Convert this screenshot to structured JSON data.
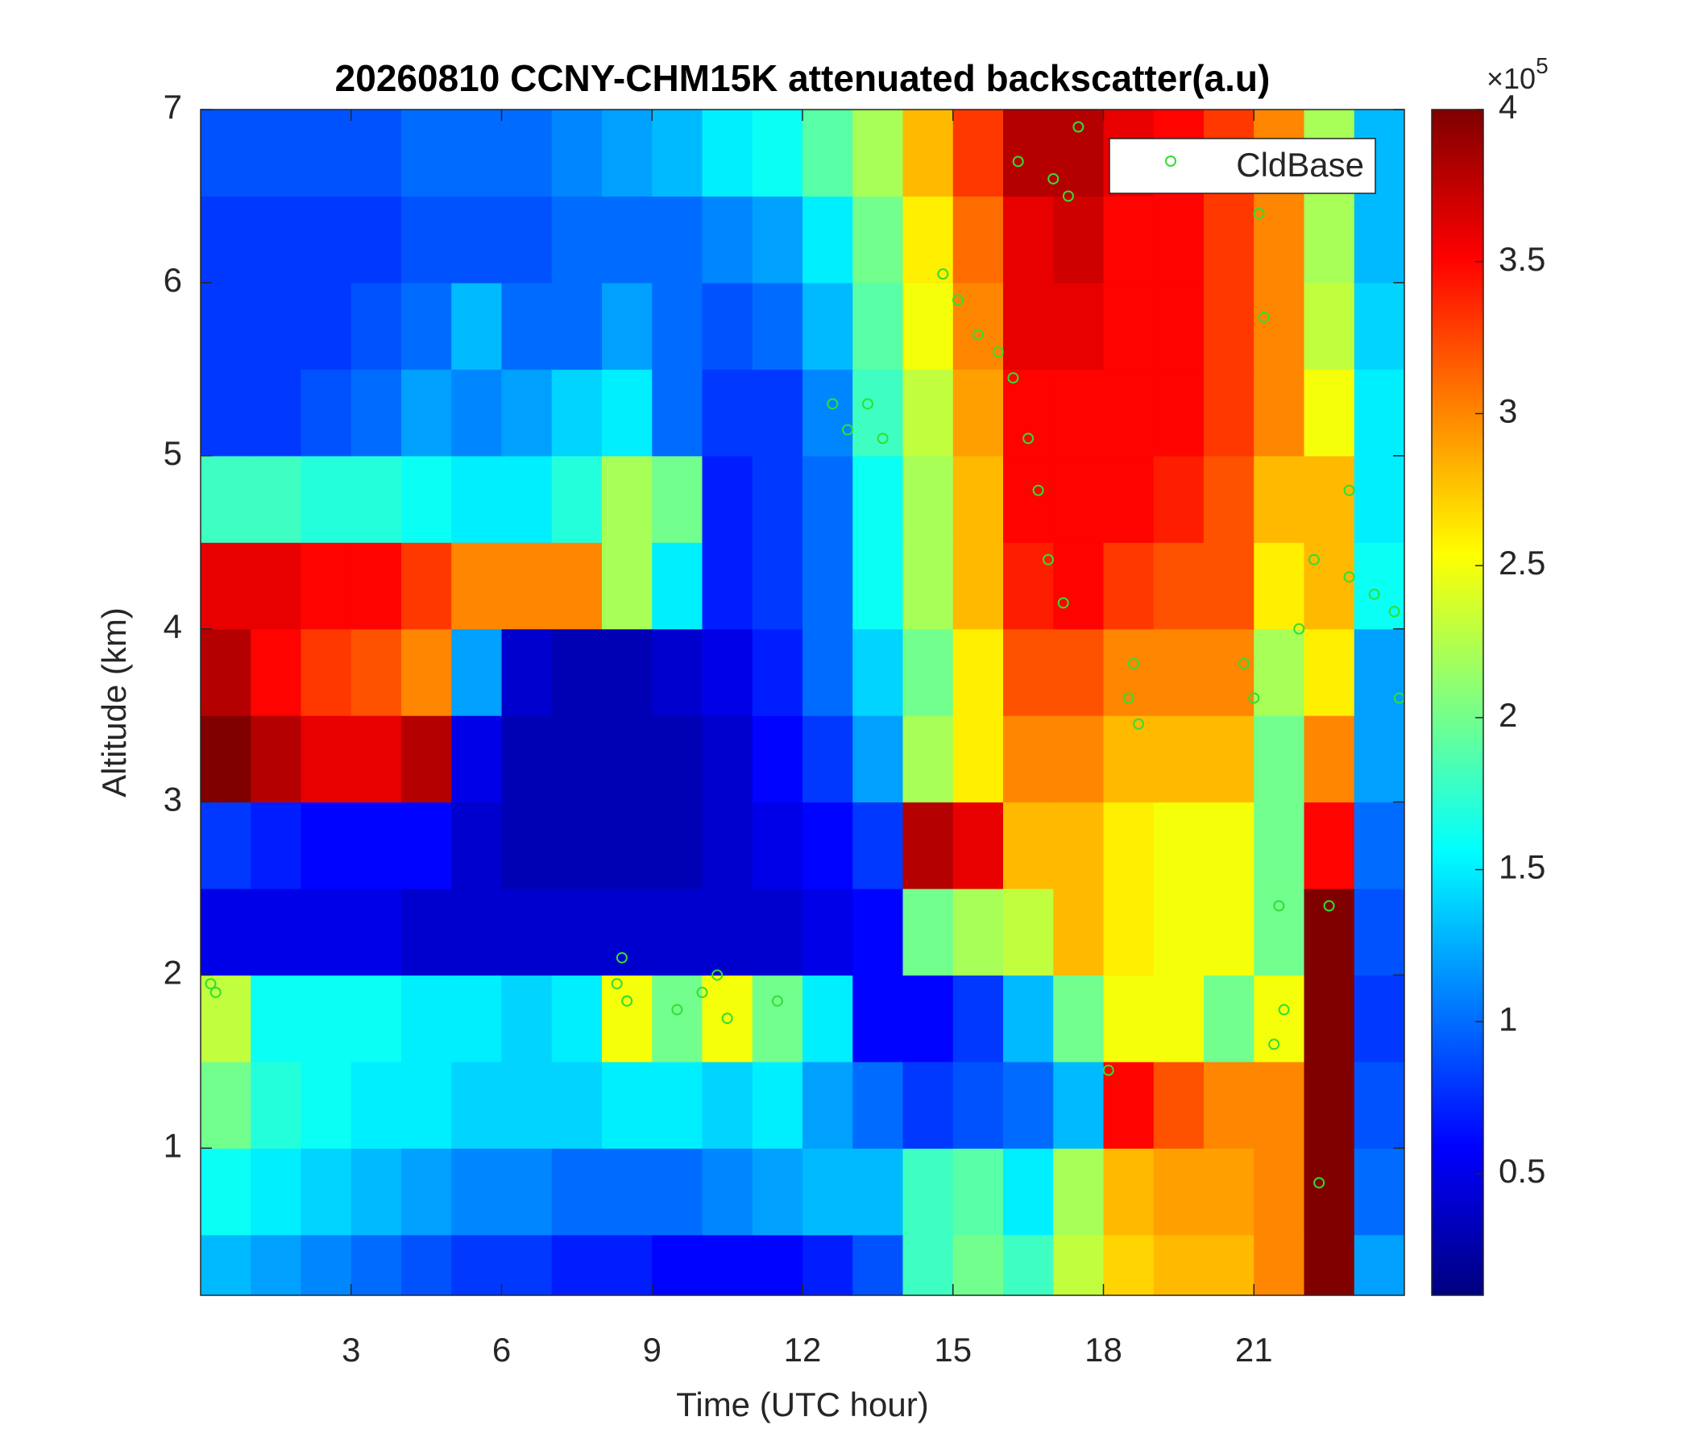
{
  "chart_data": {
    "type": "heatmap",
    "title": "20260810 CCNY-CHM15K attenuated backscatter(a.u)",
    "x_label": "Time (UTC hour)",
    "y_label": "Altitude (km)",
    "xlim": [
      0,
      24
    ],
    "ylim": [
      0.15,
      7
    ],
    "xticks": [
      3,
      6,
      9,
      12,
      15,
      18,
      21
    ],
    "yticks": [
      1,
      2,
      3,
      4,
      5,
      6,
      7
    ],
    "x_bins": [
      0,
      1,
      2,
      3,
      4,
      5,
      6,
      7,
      8,
      9,
      10,
      11,
      12,
      13,
      14,
      15,
      16,
      17,
      18,
      19,
      20,
      21,
      22,
      23,
      24
    ],
    "y_bins": [
      0.15,
      0.5,
      1,
      1.5,
      2,
      2.5,
      3,
      3.5,
      4,
      4.5,
      5,
      5.5,
      6,
      6.5,
      7
    ],
    "colormap": "jet",
    "clim": [
      0.1,
      4
    ],
    "cticks": [
      0.5,
      1,
      1.5,
      2,
      2.5,
      3,
      3.5,
      4
    ],
    "colorbar_multiplier": "×10",
    "colorbar_exponent": 5,
    "z": [
      [
        1.3,
        1.2,
        1.1,
        1.0,
        0.9,
        0.8,
        0.8,
        0.7,
        0.7,
        0.6,
        0.6,
        0.6,
        0.7,
        0.9,
        1.8,
        2.0,
        1.8,
        2.3,
        2.7,
        2.8,
        2.8,
        3.0,
        4.0,
        1.2
      ],
      [
        1.6,
        1.5,
        1.4,
        1.3,
        1.2,
        1.1,
        1.1,
        1.0,
        1.0,
        1.0,
        1.1,
        1.2,
        1.3,
        1.3,
        1.8,
        1.9,
        1.5,
        2.2,
        2.8,
        2.9,
        2.9,
        3.0,
        4.0,
        1.0
      ],
      [
        2.0,
        1.7,
        1.6,
        1.5,
        1.5,
        1.4,
        1.4,
        1.4,
        1.5,
        1.5,
        1.4,
        1.5,
        1.2,
        1.0,
        0.8,
        0.9,
        1.0,
        1.3,
        3.5,
        3.2,
        3.0,
        3.0,
        4.0,
        0.9
      ],
      [
        2.3,
        1.6,
        1.6,
        1.6,
        1.5,
        1.5,
        1.4,
        1.5,
        2.5,
        2.0,
        2.5,
        2.0,
        1.5,
        0.6,
        0.6,
        0.8,
        1.3,
        2.0,
        2.5,
        2.5,
        2.0,
        2.5,
        4.0,
        0.8
      ],
      [
        0.5,
        0.5,
        0.5,
        0.5,
        0.4,
        0.4,
        0.4,
        0.4,
        0.4,
        0.4,
        0.4,
        0.4,
        0.5,
        0.6,
        2.0,
        2.2,
        2.3,
        2.8,
        2.6,
        2.5,
        2.5,
        2.0,
        4.0,
        0.9
      ],
      [
        0.8,
        0.7,
        0.6,
        0.6,
        0.6,
        0.4,
        0.3,
        0.3,
        0.3,
        0.3,
        0.4,
        0.5,
        0.6,
        0.8,
        3.8,
        3.6,
        2.8,
        2.8,
        2.6,
        2.5,
        2.5,
        2.0,
        3.5,
        1.0
      ],
      [
        4.0,
        3.8,
        3.6,
        3.6,
        3.8,
        0.5,
        0.3,
        0.3,
        0.3,
        0.3,
        0.4,
        0.6,
        0.8,
        1.2,
        2.2,
        2.6,
        3.0,
        3.0,
        2.8,
        2.8,
        2.8,
        2.0,
        3.0,
        1.2
      ],
      [
        3.8,
        3.5,
        3.3,
        3.2,
        3.0,
        1.2,
        0.4,
        0.3,
        0.3,
        0.4,
        0.5,
        0.7,
        1.0,
        1.4,
        2.0,
        2.6,
        3.2,
        3.2,
        3.0,
        3.0,
        3.0,
        2.2,
        2.6,
        1.2
      ],
      [
        3.6,
        3.6,
        3.5,
        3.5,
        3.3,
        3.0,
        3.0,
        3.0,
        2.2,
        1.5,
        0.7,
        0.8,
        1.0,
        1.6,
        2.2,
        2.8,
        3.4,
        3.5,
        3.3,
        3.2,
        3.2,
        2.6,
        2.8,
        1.6
      ],
      [
        1.8,
        1.8,
        1.7,
        1.7,
        1.6,
        1.5,
        1.5,
        1.7,
        2.2,
        2.0,
        0.7,
        0.8,
        1.0,
        1.6,
        2.2,
        2.8,
        3.5,
        3.5,
        3.5,
        3.4,
        3.2,
        2.8,
        2.8,
        1.5
      ],
      [
        0.8,
        0.8,
        0.9,
        1.0,
        1.2,
        1.1,
        1.2,
        1.4,
        1.5,
        1.0,
        0.8,
        0.8,
        1.1,
        1.8,
        2.3,
        2.9,
        3.5,
        3.5,
        3.5,
        3.5,
        3.3,
        3.0,
        2.5,
        1.5
      ],
      [
        0.8,
        0.8,
        0.8,
        0.9,
        1.0,
        1.3,
        1.0,
        1.0,
        1.2,
        1.0,
        0.9,
        1.0,
        1.3,
        1.9,
        2.5,
        3.0,
        3.6,
        3.6,
        3.5,
        3.5,
        3.3,
        3.0,
        2.3,
        1.4
      ],
      [
        0.8,
        0.8,
        0.8,
        0.8,
        0.9,
        0.9,
        0.9,
        1.0,
        1.0,
        1.0,
        1.1,
        1.2,
        1.5,
        2.0,
        2.6,
        3.1,
        3.6,
        3.7,
        3.5,
        3.5,
        3.3,
        3.0,
        2.2,
        1.3
      ],
      [
        0.9,
        0.9,
        0.9,
        0.9,
        1.0,
        1.0,
        1.0,
        1.1,
        1.2,
        1.3,
        1.5,
        1.6,
        1.9,
        2.2,
        2.8,
        3.3,
        3.8,
        3.8,
        3.6,
        3.5,
        3.3,
        3.0,
        2.2,
        1.3
      ]
    ],
    "series": [
      {
        "name": "CldBase",
        "color": "#33dd33",
        "x": [
          0.2,
          0.3,
          8.3,
          8.4,
          8.5,
          9.5,
          10,
          10.3,
          10.5,
          11.5,
          12.6,
          12.9,
          13.3,
          13.6,
          14.8,
          15.1,
          15.5,
          15.9,
          16.2,
          16.5,
          16.7,
          16.9,
          17.2,
          16.3,
          17.3,
          17.0,
          17.5,
          18.1,
          18.5,
          18.6,
          18.7,
          20.8,
          21.0,
          21.1,
          21.2,
          21.5,
          21.6,
          21.4,
          21.9,
          22.2,
          22.3,
          22.5,
          22.9,
          22.9,
          23.4,
          23.8,
          23.9
        ],
        "values": [
          1.95,
          1.9,
          1.95,
          2.1,
          1.85,
          1.8,
          1.9,
          2.0,
          1.75,
          1.85,
          5.3,
          5.15,
          5.3,
          5.1,
          6.05,
          5.9,
          5.7,
          5.6,
          5.45,
          5.1,
          4.8,
          4.4,
          4.15,
          6.7,
          6.5,
          6.6,
          6.9,
          1.45,
          3.6,
          3.8,
          3.45,
          3.8,
          3.6,
          6.4,
          5.8,
          2.4,
          1.8,
          1.6,
          4.0,
          4.4,
          0.8,
          2.4,
          4.8,
          4.3,
          4.2,
          4.1,
          3.6
        ]
      }
    ],
    "legend_position": "upper right"
  }
}
